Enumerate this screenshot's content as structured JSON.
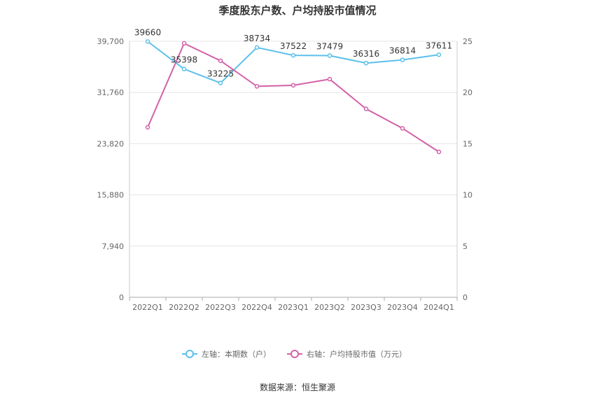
{
  "chart_data": {
    "type": "line",
    "title": "季度股东户数、户均持股市值情况",
    "categories": [
      "2022Q1",
      "2022Q2",
      "2022Q3",
      "2022Q4",
      "2023Q1",
      "2023Q2",
      "2023Q3",
      "2023Q4",
      "2024Q1"
    ],
    "left_axis": {
      "ticks": [
        "0",
        "7,940",
        "15,880",
        "23,820",
        "31,760",
        "39,700"
      ],
      "ylim": [
        0,
        39700
      ]
    },
    "right_axis": {
      "ticks": [
        "0",
        "5",
        "10",
        "15",
        "20",
        "25"
      ],
      "ylim": [
        0,
        25
      ]
    },
    "series": [
      {
        "name": "左轴：本期数（户）",
        "axis": "left",
        "color": "#5bc0eb",
        "values": [
          39660,
          35398,
          33225,
          38734,
          37522,
          37479,
          36316,
          36814,
          37611
        ],
        "labels": [
          "39660",
          "35398",
          "33225",
          "38734",
          "37522",
          "37479",
          "36316",
          "36814",
          "37611"
        ]
      },
      {
        "name": "右轴：户均持股市值（万元）",
        "axis": "right",
        "color": "#d261a8",
        "values": [
          16.6,
          24.8,
          23.1,
          20.6,
          20.7,
          21.3,
          18.4,
          16.5,
          14.2
        ]
      }
    ],
    "grid": true,
    "legend_position": "bottom"
  },
  "footer": {
    "source": "数据来源：恒生聚源"
  }
}
